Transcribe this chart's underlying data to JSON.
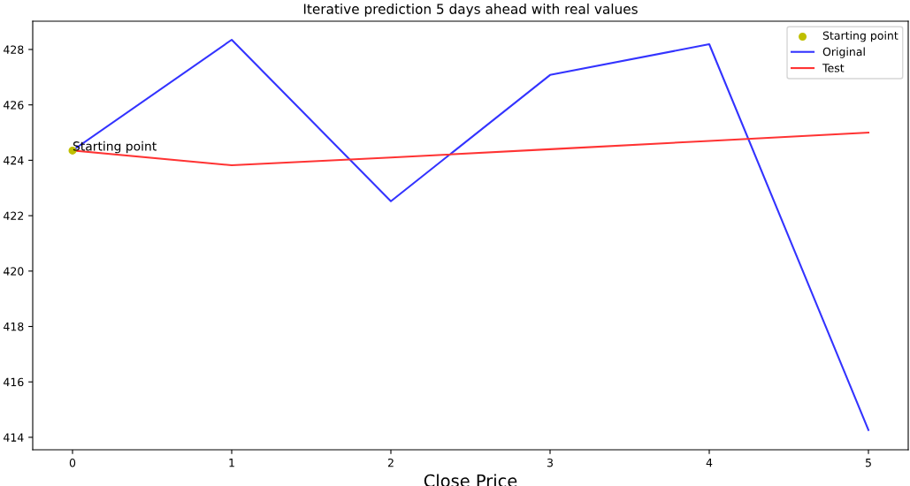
{
  "chart_data": {
    "type": "line",
    "title": "Iterative prediction 5 days ahead with real values",
    "xlabel": "Close Price",
    "x": [
      0,
      1,
      2,
      3,
      4,
      5
    ],
    "series": [
      {
        "name": "Starting point",
        "type": "scatter",
        "color": "#bfbf00",
        "x": [
          0
        ],
        "values": [
          424.35
        ]
      },
      {
        "name": "Original",
        "color": "#3333ff",
        "values": [
          424.35,
          428.35,
          422.52,
          427.08,
          428.19,
          414.26
        ]
      },
      {
        "name": "Test",
        "color": "#ff3333",
        "values": [
          424.35,
          423.82,
          424.1,
          424.4,
          424.7,
          425.0
        ]
      }
    ],
    "annotations": [
      {
        "text": "Starting point",
        "x": 0,
        "y": 424.35
      }
    ],
    "xlim": [
      -0.25,
      5.25
    ],
    "xticks": [
      0,
      1,
      2,
      3,
      4,
      5
    ],
    "ylim": [
      413.55,
      429.02
    ],
    "yticks": [
      414,
      416,
      418,
      420,
      422,
      424,
      426,
      428
    ],
    "grid": false,
    "legend": "top right"
  }
}
